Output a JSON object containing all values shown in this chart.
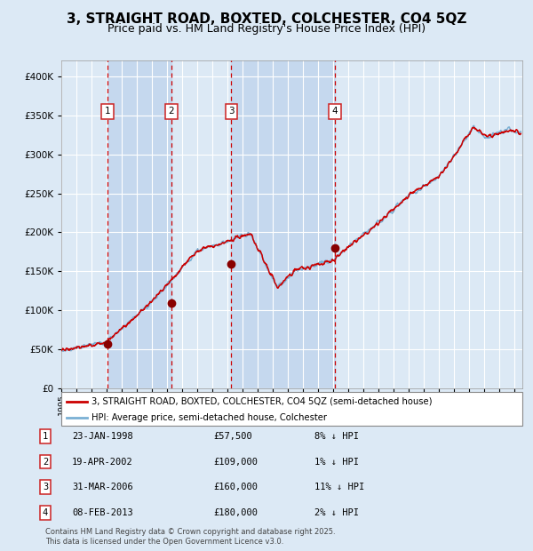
{
  "title": "3, STRAIGHT ROAD, BOXTED, COLCHESTER, CO4 5QZ",
  "subtitle": "Price paid vs. HM Land Registry's House Price Index (HPI)",
  "legend_line1": "3, STRAIGHT ROAD, BOXTED, COLCHESTER, CO4 5QZ (semi-detached house)",
  "legend_line2": "HPI: Average price, semi-detached house, Colchester",
  "footnote": "Contains HM Land Registry data © Crown copyright and database right 2025.\nThis data is licensed under the Open Government Licence v3.0.",
  "sales": [
    {
      "num": 1,
      "date": "23-JAN-1998",
      "price": 57500,
      "note": "8% ↓ HPI",
      "year": 1998.06
    },
    {
      "num": 2,
      "date": "19-APR-2002",
      "price": 109000,
      "note": "1% ↓ HPI",
      "year": 2002.29
    },
    {
      "num": 3,
      "date": "31-MAR-2006",
      "price": 160000,
      "note": "11% ↓ HPI",
      "year": 2006.25
    },
    {
      "num": 4,
      "date": "08-FEB-2013",
      "price": 180000,
      "note": "2% ↓ HPI",
      "year": 2013.1
    }
  ],
  "ylim": [
    0,
    420000
  ],
  "yticks": [
    0,
    50000,
    100000,
    150000,
    200000,
    250000,
    300000,
    350000,
    400000
  ],
  "ytick_labels": [
    "£0",
    "£50K",
    "£100K",
    "£150K",
    "£200K",
    "£250K",
    "£300K",
    "£350K",
    "£400K"
  ],
  "xlim_start": 1995.0,
  "xlim_end": 2025.5,
  "bg_color": "#dce9f5",
  "plot_bg_color": "#dce9f5",
  "stripe_color": "#c5d8ee",
  "grid_color": "#ffffff",
  "red_line_color": "#cc0000",
  "blue_line_color": "#7ab0d4",
  "sale_dot_color": "#880000",
  "dashed_line_color": "#cc0000",
  "label_box_color": "#cc2222",
  "title_fontsize": 11,
  "subtitle_fontsize": 9
}
